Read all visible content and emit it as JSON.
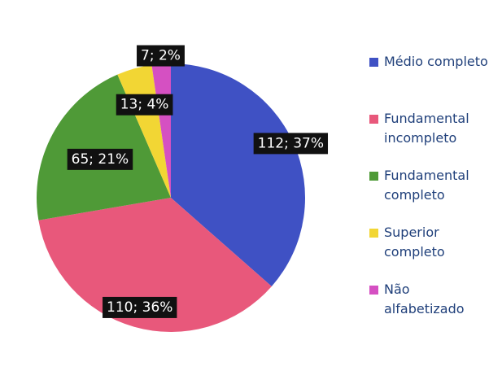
{
  "chart_data": {
    "type": "pie",
    "categories": [
      "Médio completo",
      "Fundamental incompleto",
      "Fundamental completo",
      "Superior completo",
      "Não alfabetizado"
    ],
    "values": [
      112,
      110,
      65,
      13,
      7
    ],
    "value_labels": [
      "112; 37%",
      "110; 36%",
      "65; 21%",
      "13; 4%",
      "7; 2%"
    ],
    "colors": [
      "#3f51c4",
      "#e8587b",
      "#4f9a37",
      "#f2d634",
      "#d550c2"
    ]
  }
}
